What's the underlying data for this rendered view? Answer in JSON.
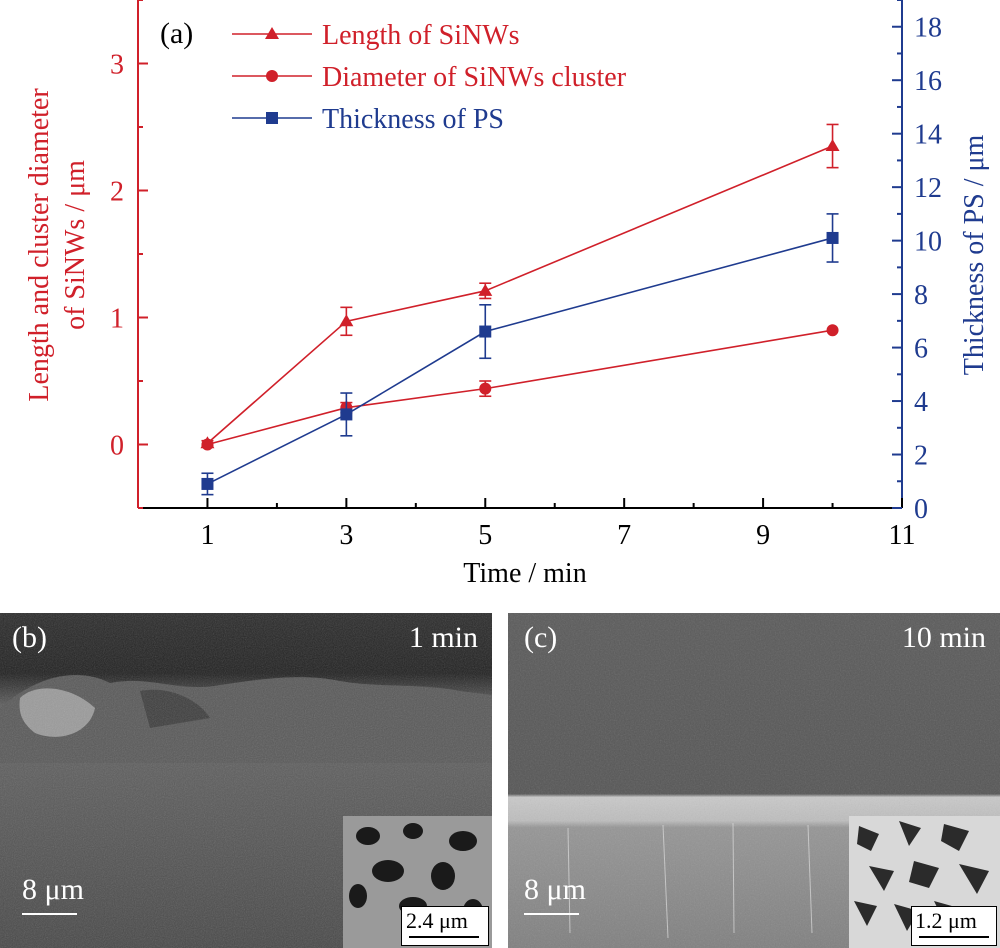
{
  "chart_data": {
    "type": "line",
    "panel_label": "(a)",
    "xlabel": "Time / min",
    "ylabel_left": [
      "Length and cluster diameter",
      "of SiNWs / μm"
    ],
    "ylabel_right": "Thickness of PS / μm",
    "xlim": [
      0,
      11
    ],
    "ylim_left": [
      -0.5,
      3.5
    ],
    "ylim_right": [
      0,
      19
    ],
    "xticks": [
      1,
      3,
      5,
      7,
      9,
      11
    ],
    "yticks_left": [
      0,
      1,
      2,
      3
    ],
    "yticks_right": [
      0,
      2,
      4,
      6,
      8,
      10,
      12,
      14,
      16,
      18
    ],
    "grid": false,
    "legend_position": "top-left",
    "colors": {
      "left_axis": "#d0202a",
      "right_axis": "#1f3b8f"
    },
    "series": [
      {
        "name": "Length of SiNWs",
        "marker": "triangle",
        "axis": "left",
        "color": "#d0202a",
        "x": [
          1,
          3,
          5,
          10
        ],
        "y": [
          0.01,
          0.97,
          1.21,
          2.35
        ],
        "yerr": [
          0.02,
          0.11,
          0.06,
          0.17
        ]
      },
      {
        "name": "Diameter of SiNWs cluster",
        "marker": "circle",
        "axis": "left",
        "color": "#d0202a",
        "x": [
          1,
          3,
          5,
          10
        ],
        "y": [
          0.0,
          0.29,
          0.44,
          0.9
        ],
        "yerr": [
          0.0,
          0.04,
          0.06,
          0.0
        ]
      },
      {
        "name": "Thickness of PS",
        "marker": "square",
        "axis": "right",
        "color": "#1f3b8f",
        "x": [
          1,
          3,
          5,
          10
        ],
        "y": [
          0.9,
          3.5,
          6.6,
          10.1
        ],
        "yerr": [
          0.4,
          0.8,
          1.0,
          0.9
        ]
      }
    ]
  },
  "panels": {
    "b": {
      "label": "(b)",
      "time": "1 min",
      "scale": "8 μm",
      "inset_scale": "2.4 μm"
    },
    "c": {
      "label": "(c)",
      "time": "10 min",
      "scale": "8 μm",
      "inset_scale": "1.2 μm"
    }
  }
}
